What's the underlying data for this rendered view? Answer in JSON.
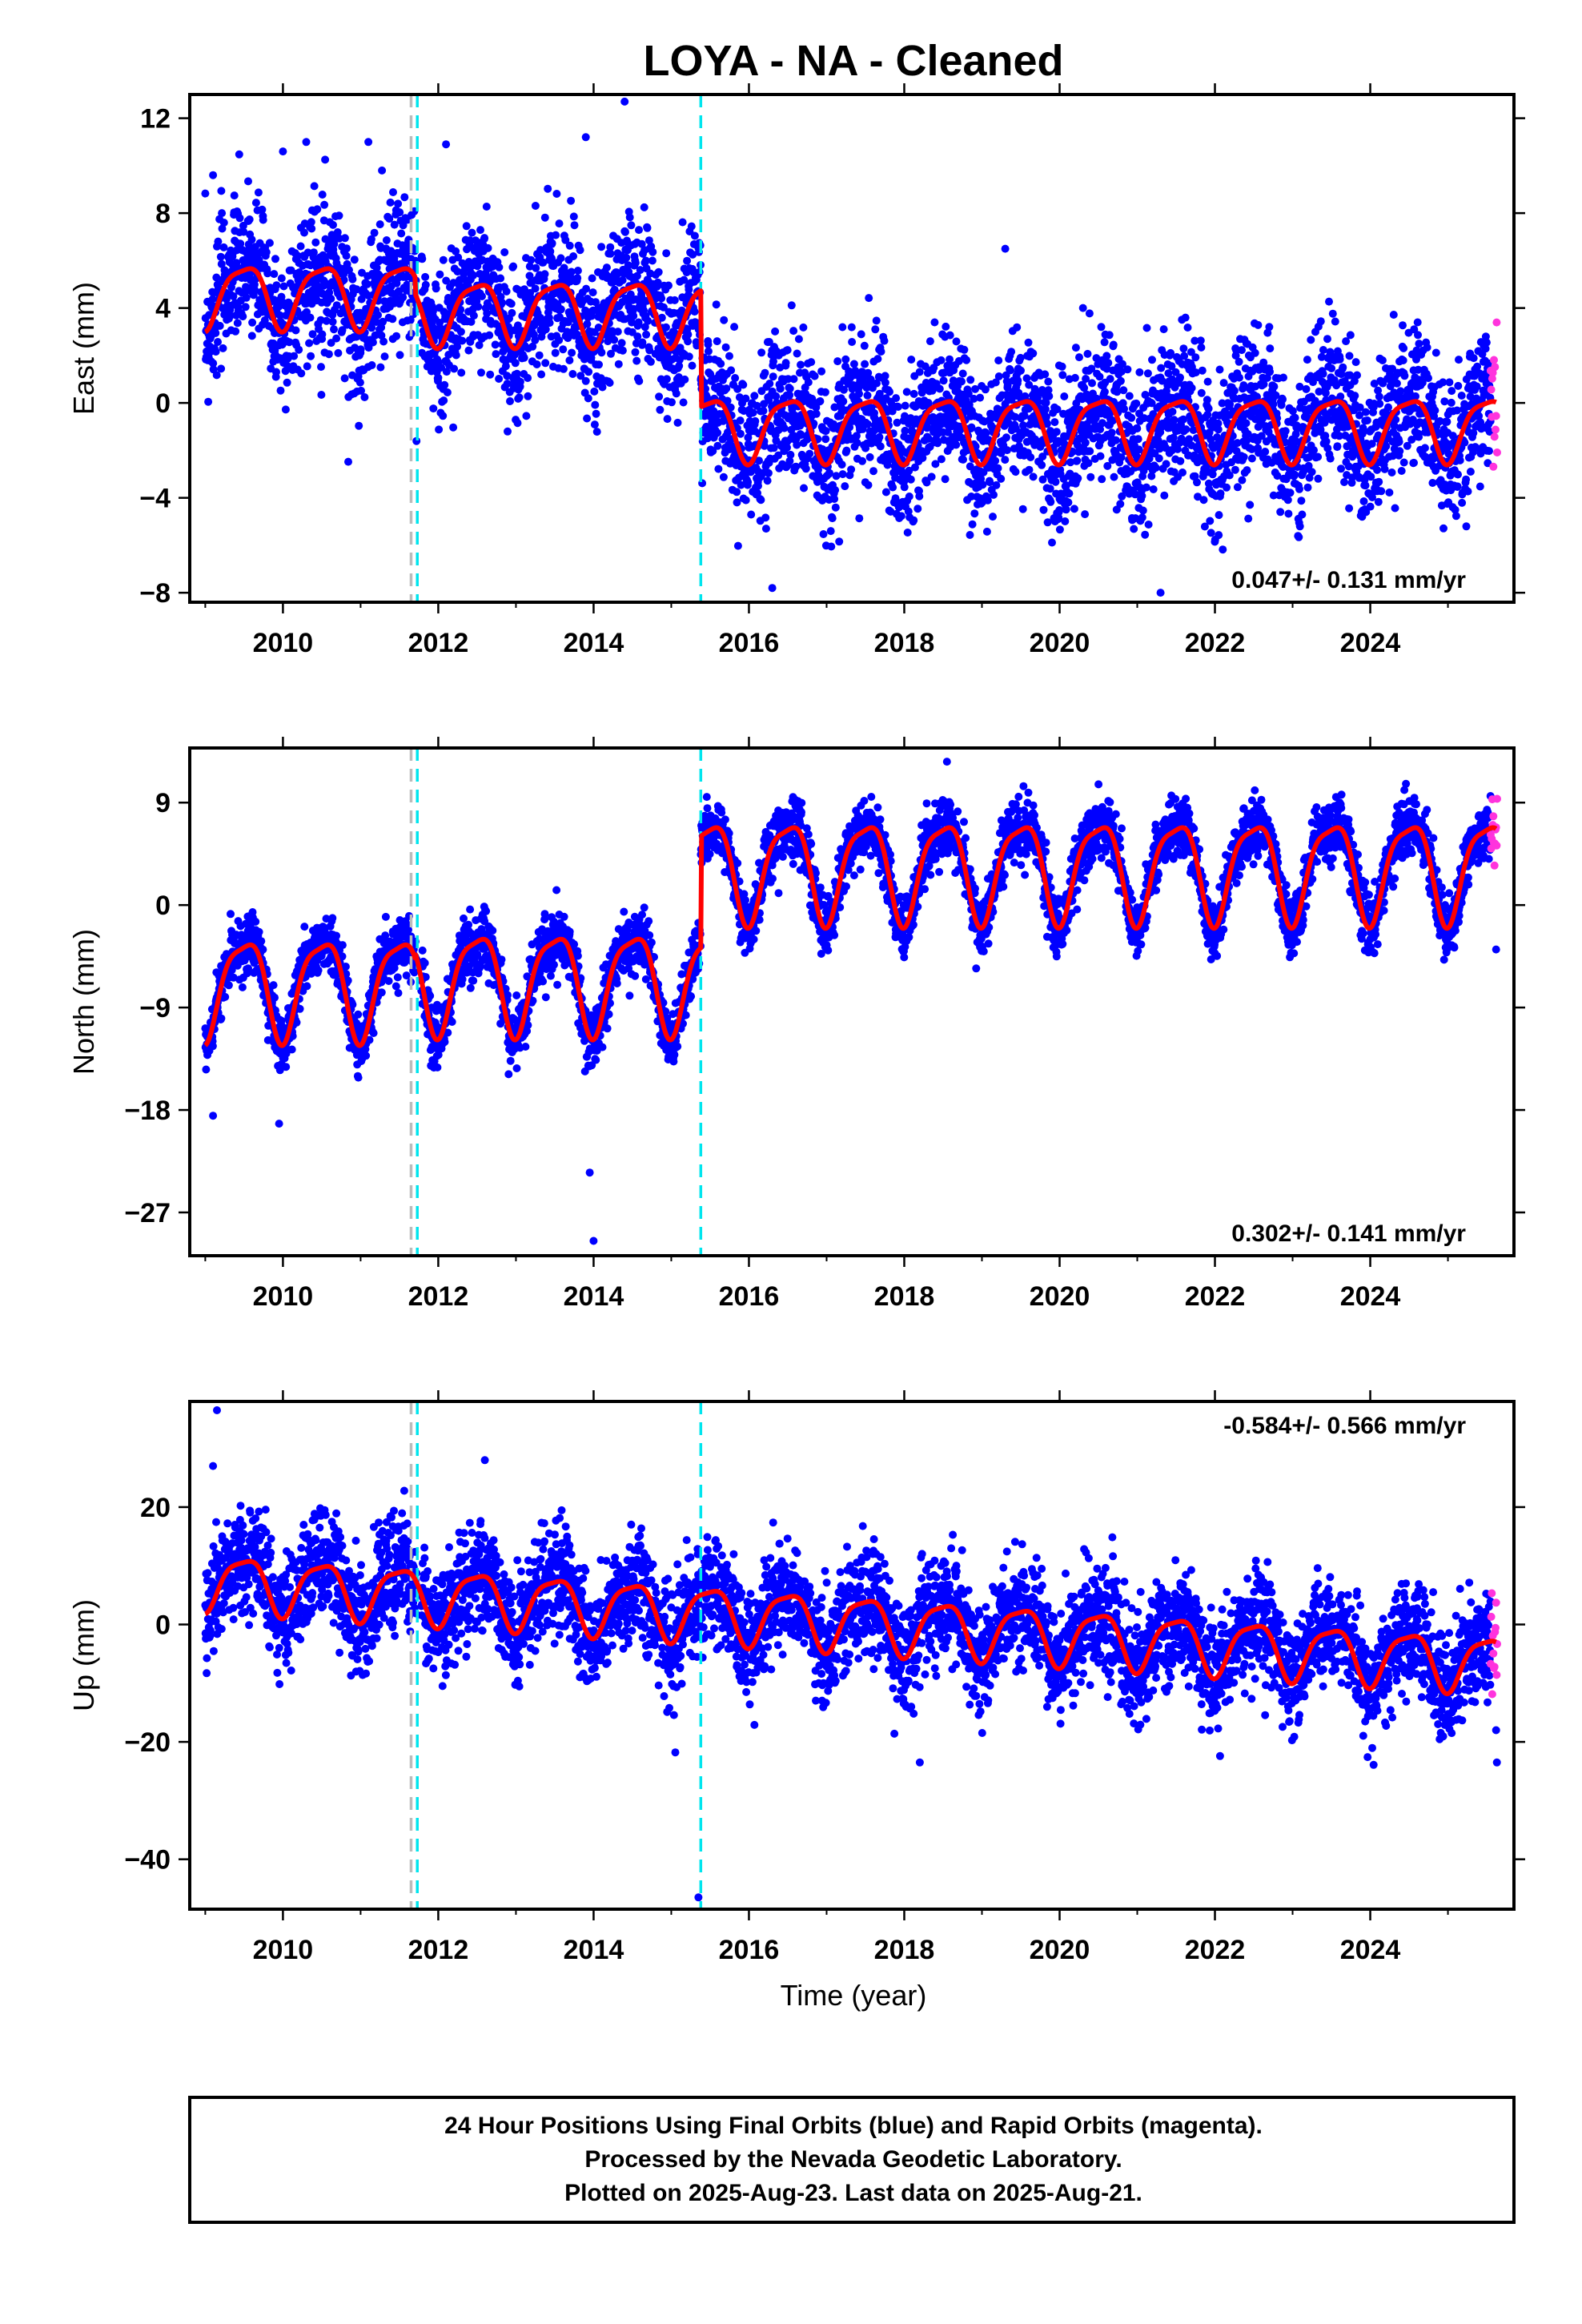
{
  "chart_data": {
    "title": "LOYA  - NA - Cleaned",
    "type": "scatter",
    "xlabel": "Time (year)",
    "xlim": [
      2008.8,
      2025.85
    ],
    "x_ticks": [
      2010,
      2012,
      2014,
      2016,
      2018,
      2020,
      2022,
      2024
    ],
    "x_tick_labels": [
      "2010",
      "2012",
      "2014",
      "2016",
      "2018",
      "2020",
      "2022",
      "2024"
    ],
    "events": [
      {
        "x": 2011.65,
        "color": "#bbbbbb"
      },
      {
        "x": 2011.73,
        "color": "#00e5ee"
      },
      {
        "x": 2015.38,
        "color": "#00e5ee"
      }
    ],
    "panels": [
      {
        "name": "east",
        "ylabel": "East (mm)",
        "ylim": [
          -8.4,
          13.0
        ],
        "y_ticks": [
          -8,
          -4,
          0,
          4,
          8,
          12
        ],
        "y_tick_labels": [
          "−8",
          "−4",
          "0",
          "4",
          "8",
          "12"
        ],
        "rate_label": "0.047+/- 0.131 mm/yr",
        "rate_position": "bottom-right",
        "offsets": [
          {
            "start": 2009.0,
            "end": 2011.7,
            "level": 4.6
          },
          {
            "start": 2011.7,
            "end": 2015.38,
            "level": 3.9
          },
          {
            "start": 2015.38,
            "end": 2025.65,
            "level": -1.0
          }
        ],
        "seasonal_amplitude": 1.3,
        "scatter_sd": 1.5,
        "series": [
          {
            "name": "Final Orbits",
            "color": "#0000ff",
            "x_range": [
              2009.0,
              2025.55
            ]
          },
          {
            "name": "Rapid Orbits",
            "color": "#ff33dd",
            "x_range": [
              2025.55,
              2025.64
            ]
          },
          {
            "name": "Model",
            "color": "#ff0000"
          }
        ],
        "outliers": [
          [
            2009.1,
            9.6
          ],
          [
            2010.0,
            10.6
          ],
          [
            2010.3,
            11.0
          ],
          [
            2011.1,
            11.0
          ],
          [
            2012.1,
            10.9
          ],
          [
            2013.9,
            11.2
          ],
          [
            2014.4,
            12.7
          ],
          [
            2016.3,
            -7.8
          ],
          [
            2019.3,
            6.5
          ],
          [
            2021.3,
            -8.0
          ],
          [
            2022.7,
            3.2
          ]
        ]
      },
      {
        "name": "north",
        "ylabel": "North (mm)",
        "ylim": [
          -30.8,
          13.8
        ],
        "y_ticks": [
          -27,
          -18,
          -9,
          0,
          9
        ],
        "y_tick_labels": [
          "−27",
          "−18",
          "−9",
          "0",
          "9"
        ],
        "rate_label": "0.302+/- 0.141 mm/yr",
        "rate_position": "bottom-right",
        "offsets": [
          {
            "start": 2009.0,
            "end": 2011.7,
            "level": -7.0
          },
          {
            "start": 2011.7,
            "end": 2015.38,
            "level": -6.5
          },
          {
            "start": 2015.38,
            "end": 2025.65,
            "level": 3.3
          }
        ],
        "seasonal_amplitude": 4.3,
        "scatter_sd": 1.3,
        "series": [
          {
            "name": "Final Orbits",
            "color": "#0000ff",
            "x_range": [
              2009.0,
              2025.55
            ]
          },
          {
            "name": "Rapid Orbits",
            "color": "#ff33dd",
            "x_range": [
              2025.55,
              2025.64
            ]
          },
          {
            "name": "Model",
            "color": "#ff0000"
          }
        ],
        "outliers": [
          [
            2009.1,
            -18.5
          ],
          [
            2009.95,
            -19.2
          ],
          [
            2013.95,
            -23.5
          ],
          [
            2014.0,
            -29.5
          ],
          [
            2015.6,
            6.8
          ],
          [
            2018.55,
            12.6
          ],
          [
            2024.95,
            -4.8
          ],
          [
            2025.62,
            -3.9
          ]
        ]
      },
      {
        "name": "up",
        "ylabel": "Up (mm)",
        "ylim": [
          -48.5,
          38.0
        ],
        "y_ticks": [
          -40,
          -20,
          0,
          20
        ],
        "y_tick_labels": [
          "−40",
          "−20",
          "0",
          "20"
        ],
        "rate_label": "-0.584+/- 0.566 mm/yr",
        "rate_position": "top-right",
        "trend_start": 7.5,
        "trend_rate": -0.85,
        "seasonal_amplitude": 4.6,
        "scatter_sd": 4.5,
        "series": [
          {
            "name": "Final Orbits",
            "color": "#0000ff",
            "x_range": [
              2009.0,
              2025.55
            ]
          },
          {
            "name": "Rapid Orbits",
            "color": "#ff33dd",
            "x_range": [
              2025.55,
              2025.64
            ]
          },
          {
            "name": "Model",
            "color": "#ff0000"
          }
        ],
        "outliers": [
          [
            2009.15,
            36.5
          ],
          [
            2009.1,
            27.0
          ],
          [
            2012.6,
            28.0
          ],
          [
            2015.35,
            -46.5
          ],
          [
            2018.2,
            -23.5
          ],
          [
            2025.63,
            -23.5
          ],
          [
            2025.62,
            -18.0
          ]
        ]
      }
    ],
    "footnote": [
      "24 Hour Positions Using Final Orbits (blue) and Rapid Orbits (magenta).",
      "Processed by the Nevada Geodetic Laboratory.",
      "Plotted on 2025-Aug-23. Last data on 2025-Aug-21."
    ]
  }
}
